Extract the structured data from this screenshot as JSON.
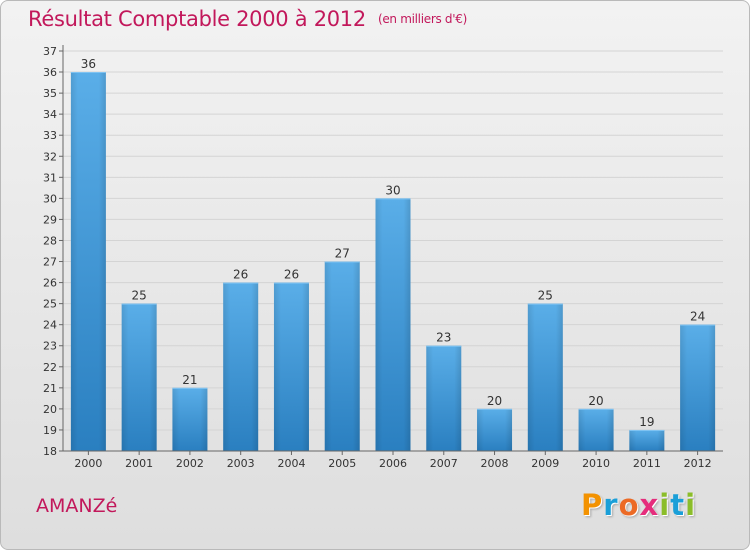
{
  "title": "Résultat Comptable 2000 à 2012",
  "subtitle": "(en milliers d'€)",
  "commune": "AMANZé",
  "logo": {
    "letters": [
      "P",
      "r",
      "o",
      "x",
      "i",
      "t",
      "i"
    ],
    "colors": [
      "#f39200",
      "#1a9fd8",
      "#ec6a25",
      "#e52d7c",
      "#8bbd2a",
      "#1a9fd8",
      "#8bbd2a"
    ]
  },
  "colors": {
    "title": "#c2185b",
    "bar_top": "#5aaee8",
    "bar_bottom": "#2a7fc0",
    "grid": "#d4d4d4",
    "axis": "#666666"
  },
  "chart_data": {
    "type": "bar",
    "title": "Résultat Comptable 2000 à 2012",
    "categories": [
      "2000",
      "2001",
      "2002",
      "2003",
      "2004",
      "2005",
      "2006",
      "2007",
      "2008",
      "2009",
      "2010",
      "2011",
      "2012"
    ],
    "values": [
      36,
      25,
      21,
      26,
      26,
      27,
      30,
      23,
      20,
      25,
      20,
      19,
      24
    ],
    "ylim": [
      18,
      37
    ],
    "yticks": [
      "18",
      "19",
      "20",
      "21",
      "22",
      "23",
      "24",
      "25",
      "26",
      "27",
      "28",
      "29",
      "30",
      "31",
      "32",
      "33",
      "34",
      "35",
      "36",
      "37"
    ],
    "xlabel": "",
    "ylabel": "",
    "grid": true
  }
}
